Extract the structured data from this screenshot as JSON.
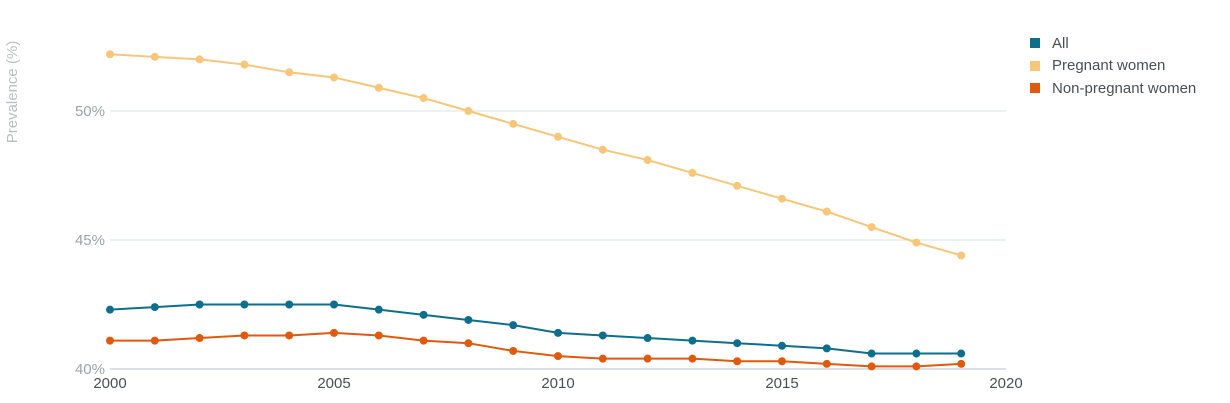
{
  "chart_data": {
    "type": "line",
    "ylabel": "Prevalence (%)",
    "xlabel": "",
    "xlim": [
      2000,
      2020
    ],
    "ylim": [
      40,
      53
    ],
    "x_ticks": [
      "2000",
      "2005",
      "2010",
      "2015",
      "2020"
    ],
    "y_ticks": [
      {
        "value": 40,
        "label": "40%"
      },
      {
        "value": 45,
        "label": "45%"
      },
      {
        "value": 50,
        "label": "50%"
      }
    ],
    "grid": "horizontal",
    "legend_position": "top-right",
    "x": [
      2000,
      2001,
      2002,
      2003,
      2004,
      2005,
      2006,
      2007,
      2008,
      2009,
      2010,
      2011,
      2012,
      2013,
      2014,
      2015,
      2016,
      2017,
      2018,
      2019
    ],
    "series": [
      {
        "name": "All",
        "color": "#0e6f8c",
        "values": [
          42.3,
          42.4,
          42.5,
          42.5,
          42.5,
          42.5,
          42.3,
          42.1,
          41.9,
          41.7,
          41.4,
          41.3,
          41.2,
          41.1,
          41.0,
          40.9,
          40.8,
          40.6,
          40.6,
          40.6
        ]
      },
      {
        "name": "Pregnant women",
        "color": "#f8c678",
        "values": [
          52.2,
          52.1,
          52.0,
          51.8,
          51.5,
          51.3,
          50.9,
          50.5,
          50.0,
          49.5,
          49.0,
          48.5,
          48.1,
          47.6,
          47.1,
          46.6,
          46.1,
          45.5,
          44.9,
          44.4
        ]
      },
      {
        "name": "Non-pregnant women",
        "color": "#e0590d",
        "values": [
          41.1,
          41.1,
          41.2,
          41.3,
          41.3,
          41.4,
          41.3,
          41.1,
          41.0,
          40.7,
          40.5,
          40.4,
          40.4,
          40.4,
          40.3,
          40.3,
          40.2,
          40.1,
          40.1,
          40.2
        ]
      }
    ]
  }
}
